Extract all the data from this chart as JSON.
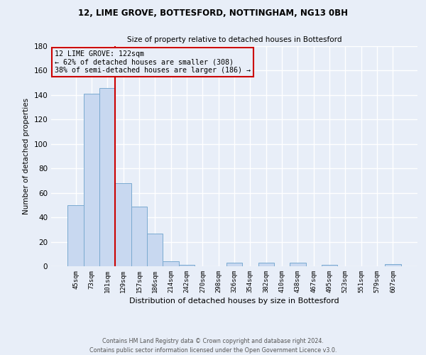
{
  "title": "12, LIME GROVE, BOTTESFORD, NOTTINGHAM, NG13 0BH",
  "subtitle": "Size of property relative to detached houses in Bottesford",
  "xlabel": "Distribution of detached houses by size in Bottesford",
  "ylabel": "Number of detached properties",
  "bar_labels": [
    "45sqm",
    "73sqm",
    "101sqm",
    "129sqm",
    "157sqm",
    "186sqm",
    "214sqm",
    "242sqm",
    "270sqm",
    "298sqm",
    "326sqm",
    "354sqm",
    "382sqm",
    "410sqm",
    "438sqm",
    "467sqm",
    "495sqm",
    "523sqm",
    "551sqm",
    "579sqm",
    "607sqm"
  ],
  "bar_values": [
    50,
    141,
    146,
    68,
    49,
    27,
    4,
    1,
    0,
    0,
    3,
    0,
    3,
    0,
    3,
    0,
    1,
    0,
    0,
    0,
    2
  ],
  "bar_color": "#c8d8f0",
  "bar_edge_color": "#7aaad0",
  "ylim": [
    0,
    180
  ],
  "yticks": [
    0,
    20,
    40,
    60,
    80,
    100,
    120,
    140,
    160,
    180
  ],
  "property_line_color": "#cc0000",
  "annotation_title": "12 LIME GROVE: 122sqm",
  "annotation_line1": "← 62% of detached houses are smaller (308)",
  "annotation_line2": "38% of semi-detached houses are larger (186) →",
  "annotation_box_color": "#cc0000",
  "footer1": "Contains HM Land Registry data © Crown copyright and database right 2024.",
  "footer2": "Contains public sector information licensed under the Open Government Licence v3.0.",
  "background_color": "#e8eef8",
  "grid_color": "#ffffff"
}
